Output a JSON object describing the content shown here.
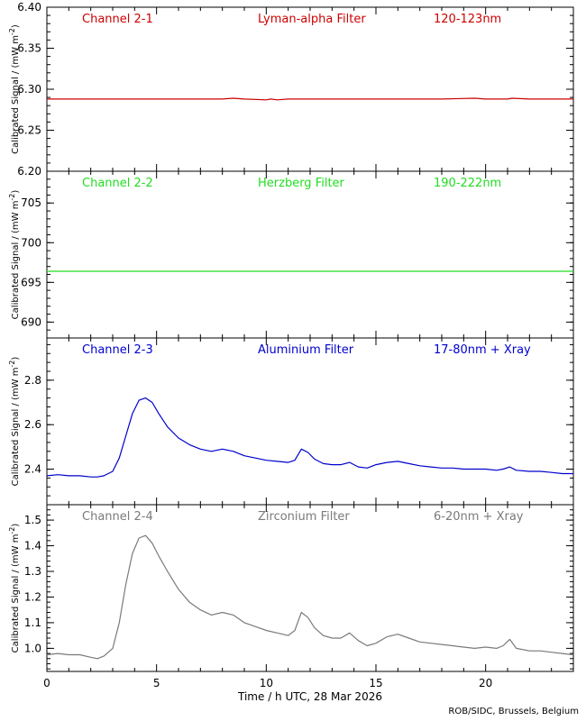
{
  "chart_data": {
    "type": "line",
    "xlabel": "Time / h UTC, 28 Mar 2026",
    "x_ticks": [
      0,
      5,
      10,
      15,
      20
    ],
    "xlim": [
      0,
      24
    ],
    "credit": "ROB/SIDC, Brussels, Belgium",
    "ylabel": "Calibrated Signal / (mW m",
    "ylabel_sup": "-2",
    "ylabel_close": ")",
    "panels": [
      {
        "channel": "Channel 2-1",
        "filter": "Lyman-alpha Filter",
        "band": "120-123nm",
        "color": "#cc0000",
        "ylim": [
          6.2,
          6.4
        ],
        "y_ticks": [
          "6.20",
          "6.25",
          "6.30",
          "6.35",
          "6.40"
        ],
        "series": {
          "x": [
            0,
            2,
            4,
            6,
            8,
            8.5,
            9,
            10,
            10.2,
            10.5,
            11,
            12,
            14,
            16,
            18,
            19.5,
            20,
            21,
            21.2,
            22,
            24
          ],
          "y": [
            6.288,
            6.288,
            6.288,
            6.288,
            6.288,
            6.289,
            6.288,
            6.287,
            6.288,
            6.287,
            6.288,
            6.288,
            6.288,
            6.288,
            6.288,
            6.289,
            6.288,
            6.288,
            6.289,
            6.288,
            6.288
          ]
        }
      },
      {
        "channel": "Channel 2-2",
        "filter": "Herzberg Filter",
        "band": "190-222nm",
        "color": "#22dd22",
        "ylim": [
          688,
          709
        ],
        "y_ticks": [
          "690",
          "695",
          "700",
          "705"
        ],
        "series": {
          "x": [
            0,
            4,
            8,
            12,
            16,
            20,
            24
          ],
          "y": [
            696.4,
            696.4,
            696.4,
            696.4,
            696.4,
            696.4,
            696.4
          ]
        }
      },
      {
        "channel": "Channel 2-3",
        "filter": "Aluminium Filter",
        "band": "17-80nm + Xray",
        "color": "#0000cc",
        "ylim": [
          2.24,
          2.99
        ],
        "y_ticks": [
          "2.4",
          "2.6",
          "2.8"
        ],
        "series": {
          "x": [
            0,
            0.5,
            1,
            1.5,
            2,
            2.3,
            2.6,
            3.0,
            3.3,
            3.6,
            3.9,
            4.2,
            4.5,
            4.8,
            5.1,
            5.5,
            6,
            6.5,
            7,
            7.5,
            8,
            8.5,
            9,
            9.5,
            10,
            10.5,
            11,
            11.3,
            11.6,
            11.9,
            12.2,
            12.6,
            13,
            13.4,
            13.8,
            14.2,
            14.6,
            15,
            15.5,
            16,
            16.5,
            17,
            17.5,
            18,
            18.5,
            19,
            19.5,
            20,
            20.5,
            20.8,
            21.1,
            21.4,
            22,
            22.5,
            23,
            23.5,
            24
          ],
          "y": [
            2.37,
            2.375,
            2.37,
            2.37,
            2.365,
            2.365,
            2.37,
            2.39,
            2.45,
            2.55,
            2.65,
            2.71,
            2.72,
            2.7,
            2.65,
            2.59,
            2.54,
            2.51,
            2.49,
            2.48,
            2.49,
            2.48,
            2.46,
            2.45,
            2.44,
            2.435,
            2.43,
            2.44,
            2.49,
            2.475,
            2.445,
            2.425,
            2.42,
            2.42,
            2.43,
            2.41,
            2.405,
            2.42,
            2.43,
            2.435,
            2.425,
            2.415,
            2.41,
            2.405,
            2.405,
            2.4,
            2.4,
            2.4,
            2.395,
            2.4,
            2.41,
            2.395,
            2.39,
            2.39,
            2.385,
            2.38,
            2.38
          ]
        }
      },
      {
        "channel": "Channel 2-4",
        "filter": "Zirconium Filter",
        "band": "6-20nm + Xray",
        "color": "#7a7a7a",
        "ylim": [
          0.91,
          1.56
        ],
        "y_ticks": [
          "1.0",
          "1.1",
          "1.2",
          "1.3",
          "1.4",
          "1.5"
        ],
        "series": {
          "x": [
            0,
            0.5,
            1,
            1.5,
            2,
            2.3,
            2.6,
            3.0,
            3.3,
            3.6,
            3.9,
            4.2,
            4.5,
            4.8,
            5.1,
            5.5,
            6,
            6.5,
            7,
            7.5,
            8,
            8.5,
            9,
            9.5,
            10,
            10.5,
            11,
            11.3,
            11.6,
            11.9,
            12.2,
            12.6,
            13,
            13.4,
            13.8,
            14.2,
            14.6,
            15,
            15.5,
            16,
            16.5,
            17,
            17.5,
            18,
            18.5,
            19,
            19.5,
            20,
            20.5,
            20.8,
            21.1,
            21.4,
            22,
            22.5,
            23,
            23.5,
            24
          ],
          "y": [
            0.975,
            0.98,
            0.975,
            0.975,
            0.965,
            0.96,
            0.97,
            1.0,
            1.1,
            1.25,
            1.37,
            1.43,
            1.44,
            1.41,
            1.36,
            1.3,
            1.23,
            1.18,
            1.15,
            1.13,
            1.14,
            1.13,
            1.1,
            1.085,
            1.07,
            1.06,
            1.05,
            1.07,
            1.14,
            1.12,
            1.08,
            1.05,
            1.04,
            1.04,
            1.06,
            1.03,
            1.01,
            1.02,
            1.045,
            1.055,
            1.04,
            1.025,
            1.02,
            1.015,
            1.01,
            1.005,
            1.0,
            1.005,
            1.0,
            1.01,
            1.035,
            1.0,
            0.99,
            0.99,
            0.985,
            0.98,
            0.975
          ]
        }
      }
    ]
  }
}
